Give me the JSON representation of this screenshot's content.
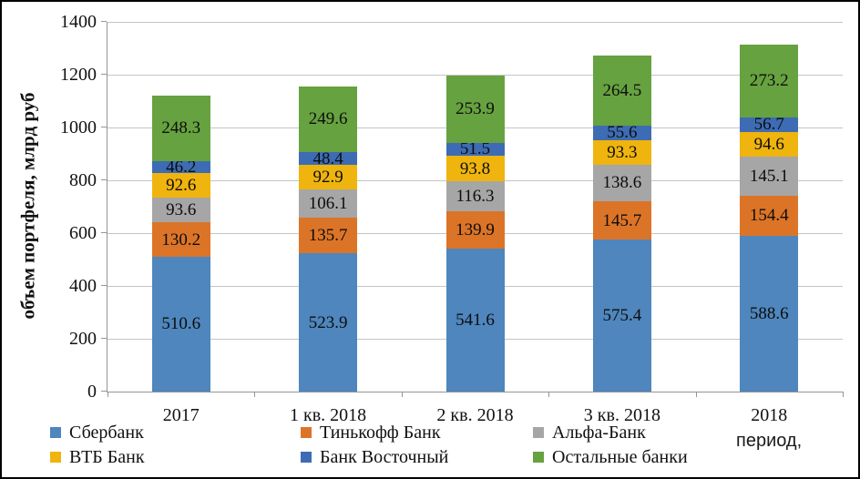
{
  "chart_data": {
    "type": "bar",
    "subtype": "stacked-column",
    "title": "",
    "ylabel": "объем портфеля, млрд руб",
    "xlabel": "период,",
    "ylim": [
      0,
      1400
    ],
    "ytick_step": 200,
    "grid": true,
    "legend_position": "bottom",
    "categories": [
      "2017",
      "1 кв. 2018",
      "2 кв. 2018",
      "3 кв. 2018",
      "2018"
    ],
    "series": [
      {
        "name": "Сбербанк",
        "color": "#4E86BD",
        "values": [
          510.6,
          523.9,
          541.6,
          575.4,
          588.6
        ]
      },
      {
        "name": "Тинькофф Банк",
        "color": "#DC7428",
        "values": [
          130.2,
          135.7,
          139.9,
          145.7,
          154.4
        ]
      },
      {
        "name": "Альфа-Банк",
        "color": "#A6A6A6",
        "values": [
          93.6,
          106.1,
          116.3,
          138.6,
          145.1
        ]
      },
      {
        "name": "ВТБ Банк",
        "color": "#EFB40E",
        "values": [
          92.6,
          92.9,
          93.8,
          93.3,
          94.6
        ]
      },
      {
        "name": "Банк Восточный",
        "color": "#3D6CB4",
        "values": [
          46.2,
          48.4,
          51.5,
          55.6,
          56.7
        ]
      },
      {
        "name": "Остальные банки",
        "color": "#66A23F",
        "values": [
          248.3,
          249.6,
          253.9,
          264.5,
          273.2
        ]
      }
    ],
    "legend_columns": [
      [
        0,
        3
      ],
      [
        1,
        4
      ],
      [
        2,
        5
      ]
    ],
    "colors": {
      "gridline": "#c5c5c5",
      "axis": "#959595",
      "text": "#111111"
    }
  }
}
